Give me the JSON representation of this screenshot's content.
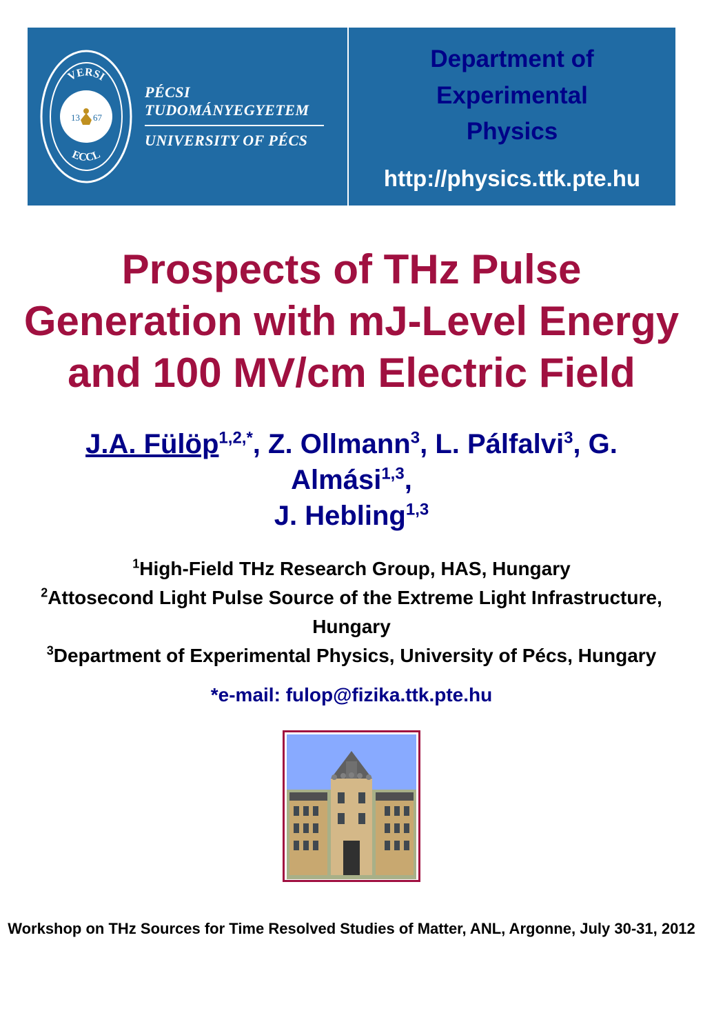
{
  "header": {
    "background_color": "#206ba4",
    "left": {
      "university_name_hu": "PÉCSI TUDOMÁNYEGYETEM",
      "university_name_en": "UNIVERSITY OF PÉCS",
      "seal_text_top": "VERSI",
      "seal_text_bottom": "ECCL",
      "seal_year": "67",
      "text_color": "#ffffff"
    },
    "right": {
      "department_line1": "Department of Experimental",
      "department_line2": "Physics",
      "url": "http://physics.ttk.pte.hu",
      "department_color": "#000088",
      "url_color": "#ffffff"
    }
  },
  "title": {
    "text": "Prospects of THz Pulse Generation with mJ-Level Energy and 100 MV/cm Electric Field",
    "color": "#a01040",
    "fontsize": 60
  },
  "authors": {
    "color": "#000088",
    "fontsize": 40,
    "list": [
      {
        "name": "J.A. Fülöp",
        "sup": "1,2,*",
        "underline": true
      },
      {
        "name": "Z. Ollmann",
        "sup": "3"
      },
      {
        "name": "L. Pálfalvi",
        "sup": "3"
      },
      {
        "name": "G. Almási",
        "sup": "1,3"
      },
      {
        "name": "J. Hebling",
        "sup": "1,3"
      }
    ]
  },
  "affiliations": {
    "color": "#000000",
    "fontsize": 28,
    "lines": [
      {
        "sup": "1",
        "text": "High-Field THz Research Group, HAS, Hungary"
      },
      {
        "sup": "2",
        "text": "Attosecond Light Pulse Source of the Extreme Light Infrastructure, Hungary"
      },
      {
        "sup": "3",
        "text": "Department of Experimental Physics, University of Pécs, Hungary"
      }
    ]
  },
  "email": {
    "prefix": "*e-mail: ",
    "address": "fulop@fizika.ttk.pte.hu",
    "color": "#000088",
    "fontsize": 28
  },
  "building_photo": {
    "alt": "University of Pécs building photograph",
    "sky_color": "#88aaff",
    "building_color": "#c8a870",
    "roof_color": "#505050",
    "border_color": "#a01040"
  },
  "footer": {
    "text": "Workshop on THz Sources for Time Resolved Studies of Matter, ANL, Argonne, July 30-31, 2012",
    "color": "#000000",
    "fontsize": 22
  }
}
